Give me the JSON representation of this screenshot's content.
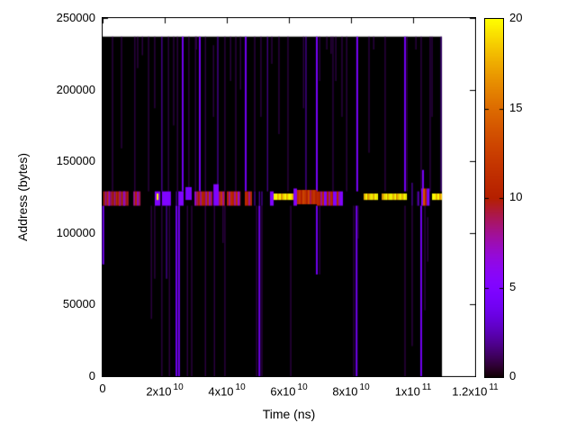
{
  "figure": {
    "background": "#ffffff",
    "frame_color": "#000000",
    "data_background": "#000000"
  },
  "chart_data": {
    "type": "heatmap",
    "title": "",
    "xlabel": "Time (ns)",
    "ylabel": "Address (bytes)",
    "x_range": [
      0,
      120000000000.0
    ],
    "y_range": [
      0,
      250000
    ],
    "grid": false,
    "legend_position": "colorbar-right",
    "x_ticks": [
      {
        "value": 0,
        "mant": "0",
        "exp": ""
      },
      {
        "value": 20000000000.0,
        "mant": "2x10",
        "exp": "10"
      },
      {
        "value": 40000000000.0,
        "mant": "4x10",
        "exp": "10"
      },
      {
        "value": 60000000000.0,
        "mant": "6x10",
        "exp": "10"
      },
      {
        "value": 80000000000.0,
        "mant": "8x10",
        "exp": "10"
      },
      {
        "value": 100000000000.0,
        "mant": "1x10",
        "exp": "11"
      },
      {
        "value": 120000000000.0,
        "mant": "1.2x10",
        "exp": "11"
      }
    ],
    "y_ticks": [
      {
        "value": 0,
        "label": "0"
      },
      {
        "value": 50000,
        "label": "50000"
      },
      {
        "value": 100000,
        "label": "100000"
      },
      {
        "value": 150000,
        "label": "150000"
      },
      {
        "value": 200000,
        "label": "200000"
      },
      {
        "value": 250000,
        "label": "250000"
      }
    ],
    "colorbar": {
      "range": [
        0,
        20
      ],
      "ticks": [
        {
          "value": 0,
          "label": "0"
        },
        {
          "value": 5,
          "label": "5"
        },
        {
          "value": 10,
          "label": "10"
        },
        {
          "value": 15,
          "label": "15"
        },
        {
          "value": 20,
          "label": "20"
        }
      ],
      "palette_model": "gnuplot pm3d rgbformulae 7,5,15 (black-violet-red-yellow)",
      "anchor_colors": {
        "0": "#000000",
        "5": "#8004ff",
        "10": "#b42000",
        "15": "#dd6c00",
        "20": "#ffff00"
      }
    },
    "data_extent": {
      "t_max": 109300000000.0,
      "addr_max": 237000
    },
    "band": {
      "addr_center": 124000,
      "addr_lo": 119000,
      "addr_hi": 129000
    },
    "band_segments": [
      [
        200000000.0,
        8400000000.0,
        119000,
        129000,
        10,
        1
      ],
      [
        9900000000.0,
        12200000000.0,
        119000,
        129000,
        10,
        1
      ],
      [
        16800000000.0,
        18600000000.0,
        119000,
        129000,
        5,
        0
      ],
      [
        17400000000.0,
        18000000000.0,
        123000,
        127500,
        20,
        0
      ],
      [
        19100000000.0,
        22000000000.0,
        119000,
        129000,
        5,
        0
      ],
      [
        24400000000.0,
        26100000000.0,
        119000,
        129000,
        5,
        0
      ],
      [
        26700000000.0,
        28700000000.0,
        123000,
        132000,
        4.5,
        0
      ],
      [
        29600000000.0,
        35400000000.0,
        119000,
        129000,
        10,
        1
      ],
      [
        35700000000.0,
        37400000000.0,
        119000,
        134000,
        5,
        0
      ],
      [
        37400000000.0,
        39400000000.0,
        119000,
        129000,
        11,
        1
      ],
      [
        40000000000.0,
        44400000000.0,
        119000,
        129000,
        10,
        1
      ],
      [
        45800000000.0,
        48100000000.0,
        119000,
        129000,
        10,
        1
      ],
      [
        53900000000.0,
        55100000000.0,
        119000,
        129000,
        5,
        0
      ],
      [
        55100000000.0,
        61500000000.0,
        123000,
        127500,
        20,
        1
      ],
      [
        61500000000.0,
        62600000000.0,
        119000,
        131000,
        5.5,
        0
      ],
      [
        62600000000.0,
        69000000000.0,
        120000,
        130000,
        12,
        1
      ],
      [
        69000000000.0,
        71300000000.0,
        119000,
        129000,
        10,
        1
      ],
      [
        71300000000.0,
        72200000000.0,
        119000,
        129000,
        5,
        0
      ],
      [
        72200000000.0,
        74200000000.0,
        119000,
        129000,
        10,
        1
      ],
      [
        74200000000.0,
        75400000000.0,
        119000,
        129000,
        5,
        0
      ],
      [
        75400000000.0,
        76500000000.0,
        119000,
        129000,
        10,
        1
      ],
      [
        76500000000.0,
        77400000000.0,
        119000,
        129000,
        5,
        0
      ],
      [
        84100000000.0,
        88700000000.0,
        123000,
        127500,
        20,
        1
      ],
      [
        89900000000.0,
        98000000000.0,
        123000,
        127500,
        20,
        1
      ],
      [
        102600000000.0,
        103200000000.0,
        119000,
        131000,
        5,
        0
      ],
      [
        103200000000.0,
        104400000000.0,
        119000,
        131000,
        13,
        1
      ],
      [
        104400000000.0,
        105300000000.0,
        119000,
        131000,
        5,
        0
      ],
      [
        106100000000.0,
        109300000000.0,
        123000,
        127500,
        20,
        1
      ]
    ],
    "vertical_lines": [
      [
        3200000000.0,
        129000,
        237000,
        1.2
      ],
      [
        6100000000.0,
        159000,
        237000,
        1.2
      ],
      [
        10400000000.0,
        129000,
        237000,
        1.2
      ],
      [
        11300000000.0,
        215000,
        237000,
        1.2
      ],
      [
        12800000000.0,
        224000,
        237000,
        1.2
      ],
      [
        14800000000.0,
        129000,
        237000,
        1.2
      ],
      [
        16800000000.0,
        187000,
        237000,
        1.2
      ],
      [
        19100000000.0,
        129000,
        237000,
        3
      ],
      [
        21200000000.0,
        129000,
        237000,
        1.2
      ],
      [
        22900000000.0,
        175000,
        237000,
        1.2
      ],
      [
        24100000000.0,
        129000,
        237000,
        1.2
      ],
      [
        25800000000.0,
        129000,
        237000,
        4
      ],
      [
        27800000000.0,
        129000,
        237000,
        1.2
      ],
      [
        29900000000.0,
        129000,
        237000,
        1.2
      ],
      [
        30200000000.0,
        228000,
        237000,
        1.2
      ],
      [
        31300000000.0,
        129000,
        237000,
        4
      ],
      [
        33100000000.0,
        129000,
        237000,
        1.2
      ],
      [
        35700000000.0,
        181000,
        231000,
        1.2
      ],
      [
        37100000000.0,
        129000,
        237000,
        3
      ],
      [
        39400000000.0,
        129000,
        237000,
        1.2
      ],
      [
        41200000000.0,
        206000,
        237000,
        1.2
      ],
      [
        42900000000.0,
        129000,
        237000,
        1.2
      ],
      [
        44400000000.0,
        200000,
        237000,
        1.2
      ],
      [
        46100000000.0,
        129000,
        237000,
        4
      ],
      [
        49000000000.0,
        129000,
        237000,
        1.2
      ],
      [
        51000000000.0,
        181000,
        237000,
        1.2
      ],
      [
        53100000000.0,
        129000,
        237000,
        2.5
      ],
      [
        54500000000.0,
        218000,
        237000,
        1.2
      ],
      [
        56800000000.0,
        169000,
        237000,
        1.2
      ],
      [
        59700000000.0,
        129000,
        237000,
        1.2
      ],
      [
        64700000000.0,
        187000,
        237000,
        1.2
      ],
      [
        65500000000.0,
        129000,
        237000,
        3
      ],
      [
        69000000000.0,
        129000,
        237000,
        4.5
      ],
      [
        69900000000.0,
        206000,
        237000,
        1.2
      ],
      [
        72200000000.0,
        228000,
        237000,
        1.2
      ],
      [
        73600000000.0,
        225000,
        237000,
        1.2
      ],
      [
        74200000000.0,
        129000,
        237000,
        1.2
      ],
      [
        75100000000.0,
        206000,
        237000,
        1.2
      ],
      [
        77100000000.0,
        181000,
        237000,
        1.2
      ],
      [
        78600000000.0,
        129000,
        237000,
        1.2
      ],
      [
        82000000000.0,
        129000,
        237000,
        4.5
      ],
      [
        85800000000.0,
        156000,
        237000,
        1.2
      ],
      [
        87300000000.0,
        228000,
        237000,
        1.2
      ],
      [
        91000000000.0,
        129000,
        237000,
        1.2
      ],
      [
        97400000000.0,
        129000,
        237000,
        4
      ],
      [
        98000000000.0,
        129000,
        237000,
        1.2
      ],
      [
        100900000000.0,
        228000,
        237000,
        1.2
      ],
      [
        102600000000.0,
        129000,
        237000,
        1.2
      ],
      [
        103200000000.0,
        129000,
        144000,
        4.5
      ],
      [
        105500000000.0,
        129000,
        237000,
        1.2
      ],
      [
        106100000000.0,
        181000,
        237000,
        1.2
      ],
      [
        109000000000.0,
        129000,
        237000,
        2.5
      ],
      [
        200000000.0,
        78000,
        119000,
        4.5
      ],
      [
        15700000000.0,
        40000,
        119000,
        1.2
      ],
      [
        16800000000.0,
        68000,
        119000,
        1.2
      ],
      [
        19100000000.0,
        0,
        119000,
        1.2
      ],
      [
        20600000000.0,
        68000,
        119000,
        3
      ],
      [
        21500000000.0,
        0,
        119000,
        1.2
      ],
      [
        23800000000.0,
        0,
        119000,
        4
      ],
      [
        24600000000.0,
        0,
        119000,
        4
      ],
      [
        27300000000.0,
        0,
        119000,
        1.2
      ],
      [
        28700000000.0,
        0,
        119000,
        1.2
      ],
      [
        33100000000.0,
        0,
        119000,
        1.2
      ],
      [
        36000000000.0,
        0,
        119000,
        1.2
      ],
      [
        38800000000.0,
        93000,
        119000,
        1.2
      ],
      [
        39400000000.0,
        0,
        119000,
        1.2
      ],
      [
        49600000000.0,
        0,
        119000,
        1.2
      ],
      [
        50500000000.0,
        0,
        119000,
        4
      ],
      [
        51300000000.0,
        0,
        119000,
        1.2
      ],
      [
        60600000000.0,
        0,
        119000,
        1.2
      ],
      [
        69000000000.0,
        71000,
        119000,
        4
      ],
      [
        69900000000.0,
        71000,
        119000,
        1.2
      ],
      [
        80900000000.0,
        0,
        119000,
        1.2
      ],
      [
        81800000000.0,
        0,
        119000,
        4
      ],
      [
        82300000000.0,
        96000,
        119000,
        1.2
      ],
      [
        97400000000.0,
        0,
        119000,
        1.2
      ],
      [
        99700000000.0,
        21000,
        119000,
        1.2
      ],
      [
        102600000000.0,
        0,
        119000,
        4
      ],
      [
        103800000000.0,
        46000,
        119000,
        1.2
      ],
      [
        104700000000.0,
        80000,
        111000,
        1.2
      ],
      [
        2000000000.0,
        119000,
        129000,
        4.5
      ],
      [
        5500000000.0,
        119000,
        129000,
        4
      ],
      [
        7000000000.0,
        119000,
        129000,
        4
      ],
      [
        23800000000.0,
        119000,
        129000,
        3
      ],
      [
        24600000000.0,
        119000,
        129000,
        3
      ],
      [
        49000000000.0,
        119000,
        129000,
        3
      ],
      [
        50500000000.0,
        119000,
        129000,
        3
      ],
      [
        51300000000.0,
        119000,
        129000,
        3
      ],
      [
        99700000000.0,
        119000,
        135000,
        3
      ],
      [
        101500000000.0,
        119000,
        129000,
        3
      ],
      [
        101800000000.0,
        119000,
        129000,
        3
      ]
    ]
  }
}
